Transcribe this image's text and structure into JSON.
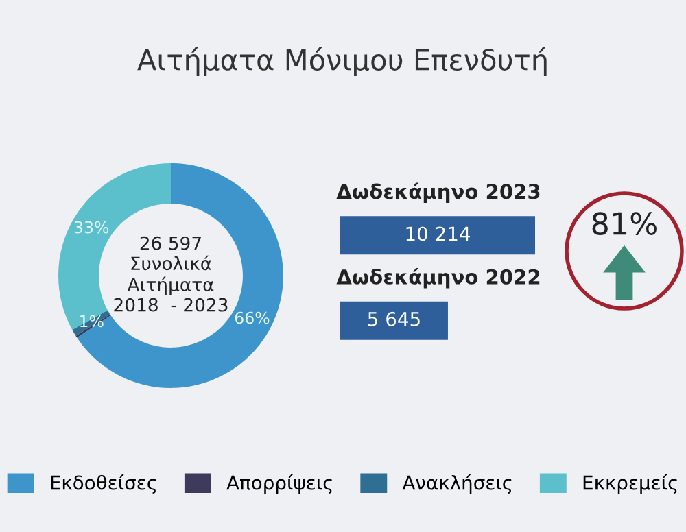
{
  "chart_data": [
    {
      "type": "donut",
      "title": "Αιτήματα Μόνιμου Επενδυτή",
      "categories": [
        "Εκδοθείσες",
        "Απορρίψεις",
        "Ανακλήσεις",
        "Εκκρεμείς"
      ],
      "values": [
        65.7,
        0.3,
        1,
        33
      ],
      "colors": [
        "#3d95cc",
        "#3d3a5c",
        "#2f6f93",
        "#5cc0cc"
      ],
      "value_labels": [
        "66%",
        null,
        "1%",
        "33%"
      ],
      "annotations": [
        "26 597\nΣυνολικά\nΑιτήματα\n2018  - 2023"
      ],
      "legend": "bottom"
    },
    {
      "type": "bar",
      "orientation": "horizontal",
      "categories": [
        "Δωδεκάμηνο 2023",
        "Δωδεκάμηνο 2022"
      ],
      "values": [
        10214,
        5645
      ],
      "value_labels": [
        "10 214",
        "5 645"
      ],
      "color": "#2e5f9a",
      "annotations": [
        "81%"
      ]
    }
  ]
}
